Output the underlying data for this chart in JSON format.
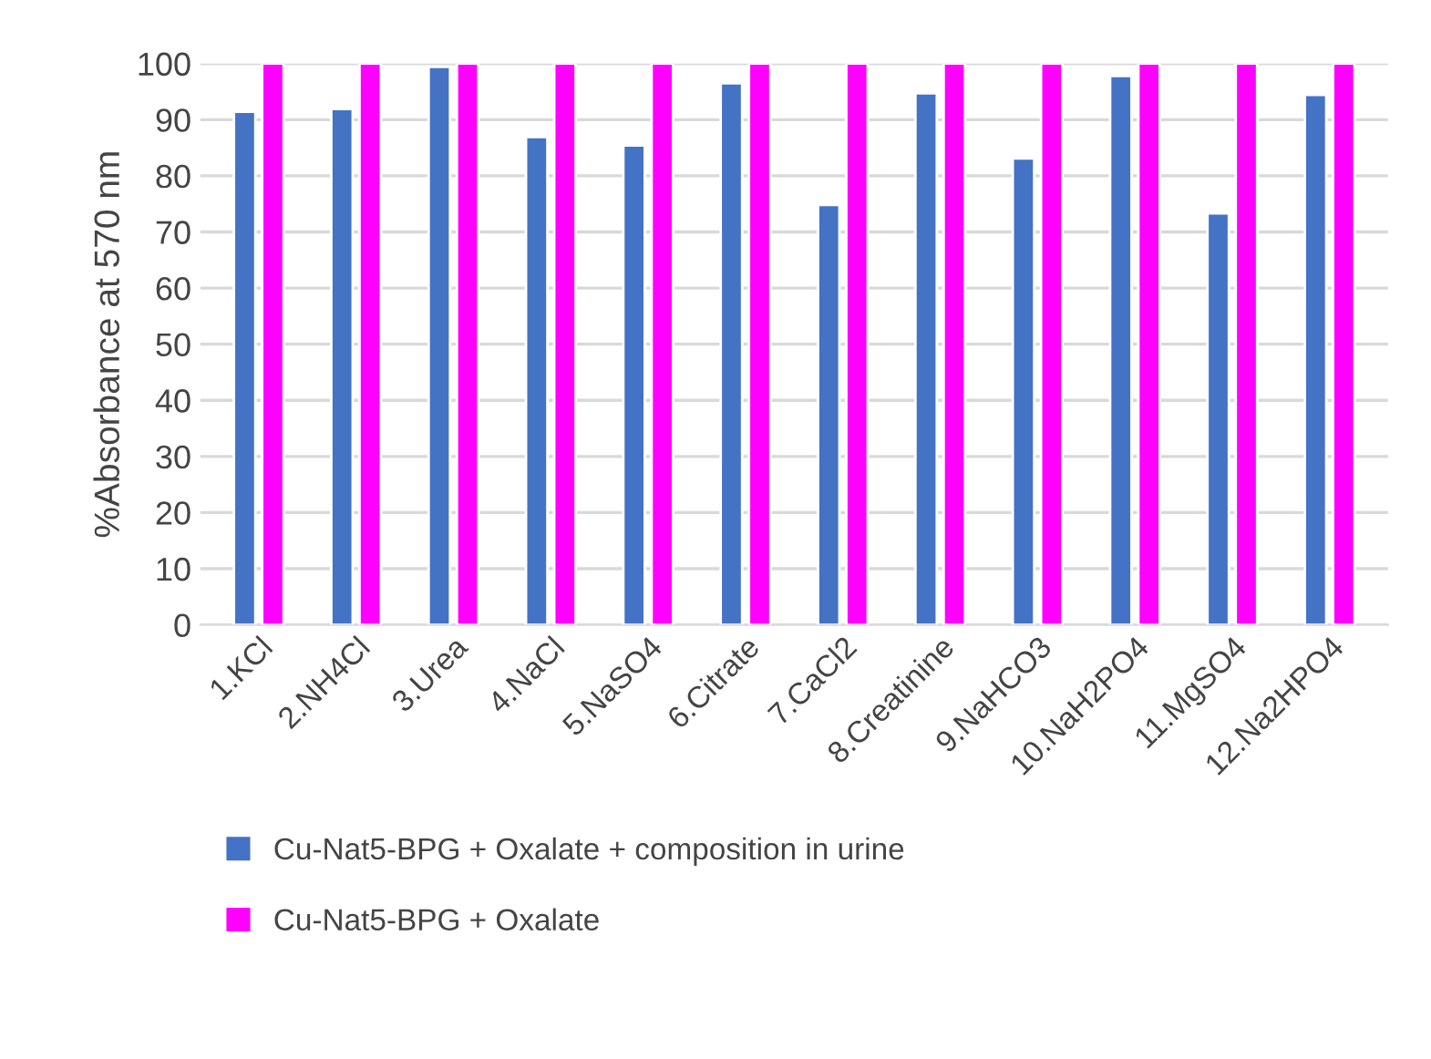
{
  "chart_data": {
    "type": "bar",
    "ylabel": "%Absorbance at 570 nm",
    "categories": [
      "1.KCl",
      "2.NH4Cl",
      "3.Urea",
      "4.NaCl",
      "5.NaSO4",
      "6.Citrate",
      "7.CaCl2",
      "8.Creatinine",
      "9.NaHCO3",
      "10.NaH2PO4",
      "11.MgSO4",
      "12.Na2HPO4"
    ],
    "series": [
      {
        "name": "Cu-Nat5-BPG + Oxalate + composition in urine",
        "color": "#4472c4",
        "values": [
          91.4,
          91.9,
          99.4,
          86.9,
          85.4,
          96.5,
          74.8,
          94.7,
          83.1,
          97.8,
          73.3,
          94.4
        ]
      },
      {
        "name": "Cu-Nat5-BPG + Oxalate",
        "color": "#ff00ff",
        "values": [
          100,
          100,
          100,
          100,
          100,
          100,
          100,
          100,
          100,
          100,
          100,
          100
        ]
      }
    ],
    "ylim": [
      0,
      100
    ],
    "yticks": [
      0,
      10,
      20,
      30,
      40,
      50,
      60,
      70,
      80,
      90,
      100
    ],
    "grid": "y",
    "legend": "bottom"
  }
}
